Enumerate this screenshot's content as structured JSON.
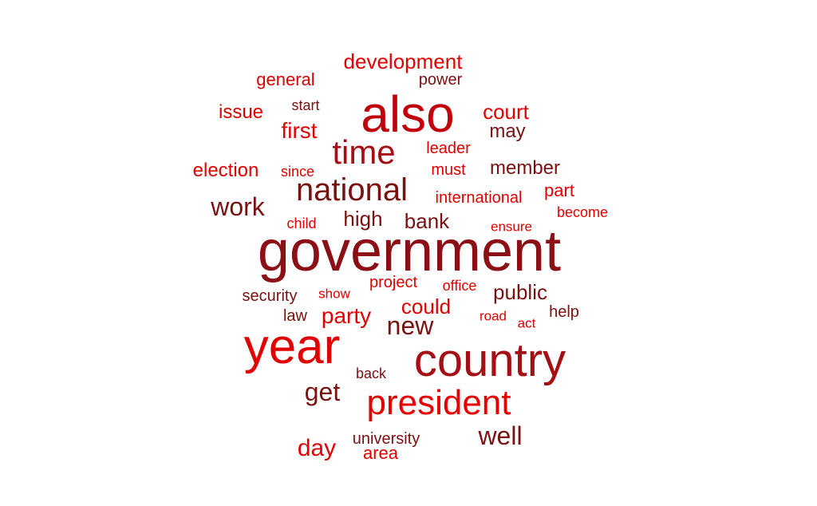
{
  "palette": {
    "red": "#e00000",
    "mid_red": "#c00000",
    "dark_red": "#a01010",
    "maroon": "#7a1010"
  },
  "words": [
    {
      "text": "government",
      "weight": 1.0,
      "color": "#8b0f14"
    },
    {
      "text": "also",
      "weight": 0.78,
      "color": "#c0000a"
    },
    {
      "text": "year",
      "weight": 0.75,
      "color": "#e00000"
    },
    {
      "text": "country",
      "weight": 0.73,
      "color": "#a50e14"
    },
    {
      "text": "president",
      "weight": 0.55,
      "color": "#e60000"
    },
    {
      "text": "time",
      "weight": 0.52,
      "color": "#a50e14"
    },
    {
      "text": "national",
      "weight": 0.48,
      "color": "#7a1010"
    },
    {
      "text": "new",
      "weight": 0.4,
      "color": "#7a1010"
    },
    {
      "text": "get",
      "weight": 0.4,
      "color": "#7a1010"
    },
    {
      "text": "well",
      "weight": 0.4,
      "color": "#7a1010"
    },
    {
      "text": "day",
      "weight": 0.38,
      "color": "#e00000"
    },
    {
      "text": "work",
      "weight": 0.37,
      "color": "#7a1010"
    },
    {
      "text": "party",
      "weight": 0.32,
      "color": "#e00000"
    },
    {
      "text": "first",
      "weight": 0.32,
      "color": "#e00000"
    },
    {
      "text": "court",
      "weight": 0.3,
      "color": "#e00000"
    },
    {
      "text": "public",
      "weight": 0.3,
      "color": "#7a1010"
    },
    {
      "text": "development",
      "weight": 0.29,
      "color": "#e00000"
    },
    {
      "text": "high",
      "weight": 0.29,
      "color": "#7a1010"
    },
    {
      "text": "bank",
      "weight": 0.29,
      "color": "#7a1010"
    },
    {
      "text": "could",
      "weight": 0.28,
      "color": "#e00000"
    },
    {
      "text": "member",
      "weight": 0.27,
      "color": "#7a1010"
    },
    {
      "text": "election",
      "weight": 0.27,
      "color": "#e00000"
    },
    {
      "text": "issue",
      "weight": 0.27,
      "color": "#e00000"
    },
    {
      "text": "may",
      "weight": 0.26,
      "color": "#7a1010"
    },
    {
      "text": "part",
      "weight": 0.25,
      "color": "#e00000"
    },
    {
      "text": "general",
      "weight": 0.25,
      "color": "#e00000"
    },
    {
      "text": "area",
      "weight": 0.24,
      "color": "#e00000"
    },
    {
      "text": "security",
      "weight": 0.23,
      "color": "#7a1010"
    },
    {
      "text": "law",
      "weight": 0.23,
      "color": "#7a1010"
    },
    {
      "text": "project",
      "weight": 0.22,
      "color": "#e00000"
    },
    {
      "text": "must",
      "weight": 0.22,
      "color": "#e00000"
    },
    {
      "text": "power",
      "weight": 0.22,
      "color": "#7a1010"
    },
    {
      "text": "help",
      "weight": 0.21,
      "color": "#7a1010"
    },
    {
      "text": "university",
      "weight": 0.21,
      "color": "#7a1010"
    },
    {
      "text": "international",
      "weight": 0.21,
      "color": "#e00000"
    },
    {
      "text": "leader",
      "weight": 0.2,
      "color": "#e00000"
    },
    {
      "text": "office",
      "weight": 0.2,
      "color": "#e00000"
    },
    {
      "text": "become",
      "weight": 0.2,
      "color": "#e00000"
    },
    {
      "text": "start",
      "weight": 0.19,
      "color": "#7a1010"
    },
    {
      "text": "since",
      "weight": 0.19,
      "color": "#e00000"
    },
    {
      "text": "child",
      "weight": 0.19,
      "color": "#e00000"
    },
    {
      "text": "back",
      "weight": 0.19,
      "color": "#7a1010"
    },
    {
      "text": "show",
      "weight": 0.18,
      "color": "#e00000"
    },
    {
      "text": "act",
      "weight": 0.18,
      "color": "#e00000"
    },
    {
      "text": "road",
      "weight": 0.18,
      "color": "#e00000"
    },
    {
      "text": "ensure",
      "weight": 0.18,
      "color": "#e00000"
    }
  ]
}
